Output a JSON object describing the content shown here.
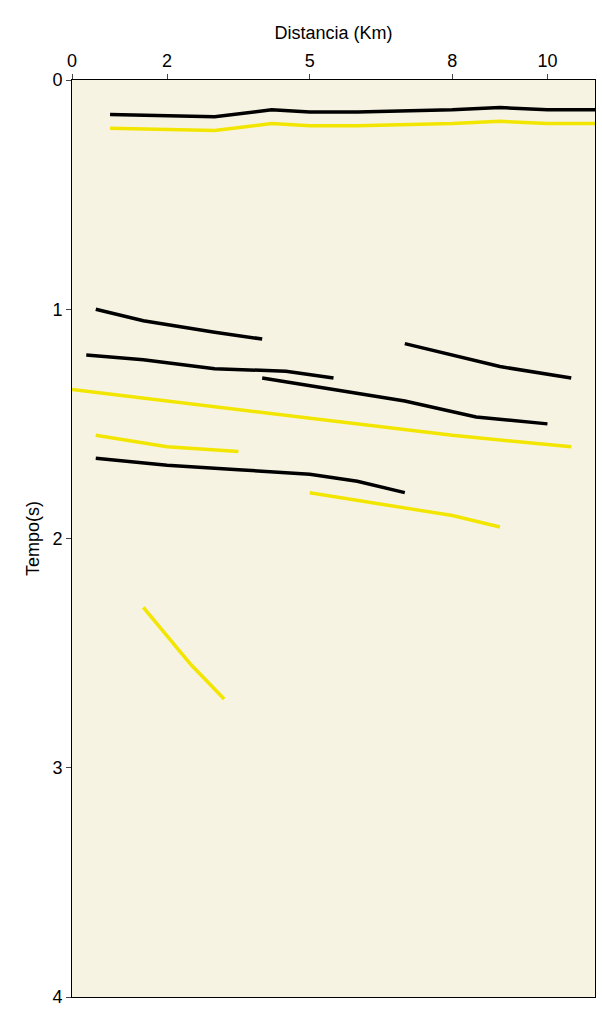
{
  "chart_data": {
    "type": "seismic_section",
    "xlabel": "Distancia (Km)",
    "ylabel": "Tempo(s)",
    "xlim": [
      0,
      11
    ],
    "xticks": [
      0,
      2,
      5,
      8,
      10
    ],
    "ylim": [
      4,
      0
    ],
    "yticks": [
      0,
      1,
      2,
      3,
      4
    ],
    "grid": false,
    "horizons": [
      {
        "color": "#000000",
        "x": [
          0.8,
          3,
          4.2,
          5,
          6,
          8,
          9,
          10,
          11
        ],
        "values": [
          0.15,
          0.16,
          0.13,
          0.14,
          0.14,
          0.13,
          0.12,
          0.13,
          0.13
        ]
      },
      {
        "color": "#f2e600",
        "x": [
          0.8,
          3,
          4.2,
          5,
          6,
          8,
          9,
          10,
          11
        ],
        "values": [
          0.21,
          0.22,
          0.19,
          0.2,
          0.2,
          0.19,
          0.18,
          0.19,
          0.19
        ]
      },
      {
        "color": "#000000",
        "x": [
          0.5,
          1.5,
          3,
          4
        ],
        "values": [
          1.0,
          1.05,
          1.1,
          1.13
        ]
      },
      {
        "color": "#000000",
        "x": [
          0.3,
          1.5,
          3,
          4.5,
          5.5
        ],
        "values": [
          1.2,
          1.22,
          1.26,
          1.27,
          1.3
        ]
      },
      {
        "color": "#000000",
        "x": [
          4,
          5.5,
          7,
          8.5,
          10
        ],
        "values": [
          1.3,
          1.35,
          1.4,
          1.47,
          1.5
        ]
      },
      {
        "color": "#f2e600",
        "x": [
          0,
          2,
          4,
          6,
          8,
          10.5
        ],
        "values": [
          1.35,
          1.4,
          1.45,
          1.5,
          1.55,
          1.6
        ]
      },
      {
        "color": "#000000",
        "x": [
          0.5,
          2,
          3.5,
          5,
          6,
          7
        ],
        "values": [
          1.65,
          1.68,
          1.7,
          1.72,
          1.75,
          1.8
        ]
      },
      {
        "color": "#f2e600",
        "x": [
          5,
          6.5,
          8,
          9
        ],
        "values": [
          1.8,
          1.85,
          1.9,
          1.95
        ]
      },
      {
        "color": "#000000",
        "x": [
          7,
          8,
          9,
          10.5
        ],
        "values": [
          1.15,
          1.2,
          1.25,
          1.3
        ]
      },
      {
        "color": "#f2e600",
        "x": [
          1.5,
          2.5,
          3.2
        ],
        "values": [
          2.3,
          2.55,
          2.7
        ]
      },
      {
        "color": "#f2e600",
        "x": [
          0.5,
          2,
          3.5
        ],
        "values": [
          1.55,
          1.6,
          1.62
        ]
      }
    ]
  }
}
